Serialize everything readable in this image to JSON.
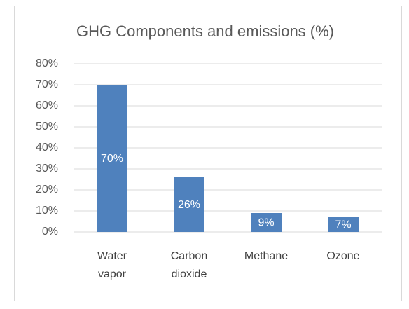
{
  "chart_data": {
    "type": "bar",
    "title": "GHG Components and emissions (%)",
    "categories": [
      "Water vapor",
      "Carbon dioxide",
      "Methane",
      "Ozone"
    ],
    "values": [
      70,
      26,
      9,
      7
    ],
    "value_labels": [
      "70%",
      "26%",
      "9%",
      "7%"
    ],
    "color": "#4f81bd",
    "ylim": [
      0,
      80
    ],
    "yticks": [
      {
        "value": 0,
        "label": "0%"
      },
      {
        "value": 10,
        "label": "10%"
      },
      {
        "value": 20,
        "label": "20%"
      },
      {
        "value": 30,
        "label": "30%"
      },
      {
        "value": 40,
        "label": "40%"
      },
      {
        "value": 50,
        "label": "50%"
      },
      {
        "value": 60,
        "label": "60%"
      },
      {
        "value": 70,
        "label": "70%"
      },
      {
        "value": 80,
        "label": "80%"
      }
    ],
    "grid": true
  }
}
